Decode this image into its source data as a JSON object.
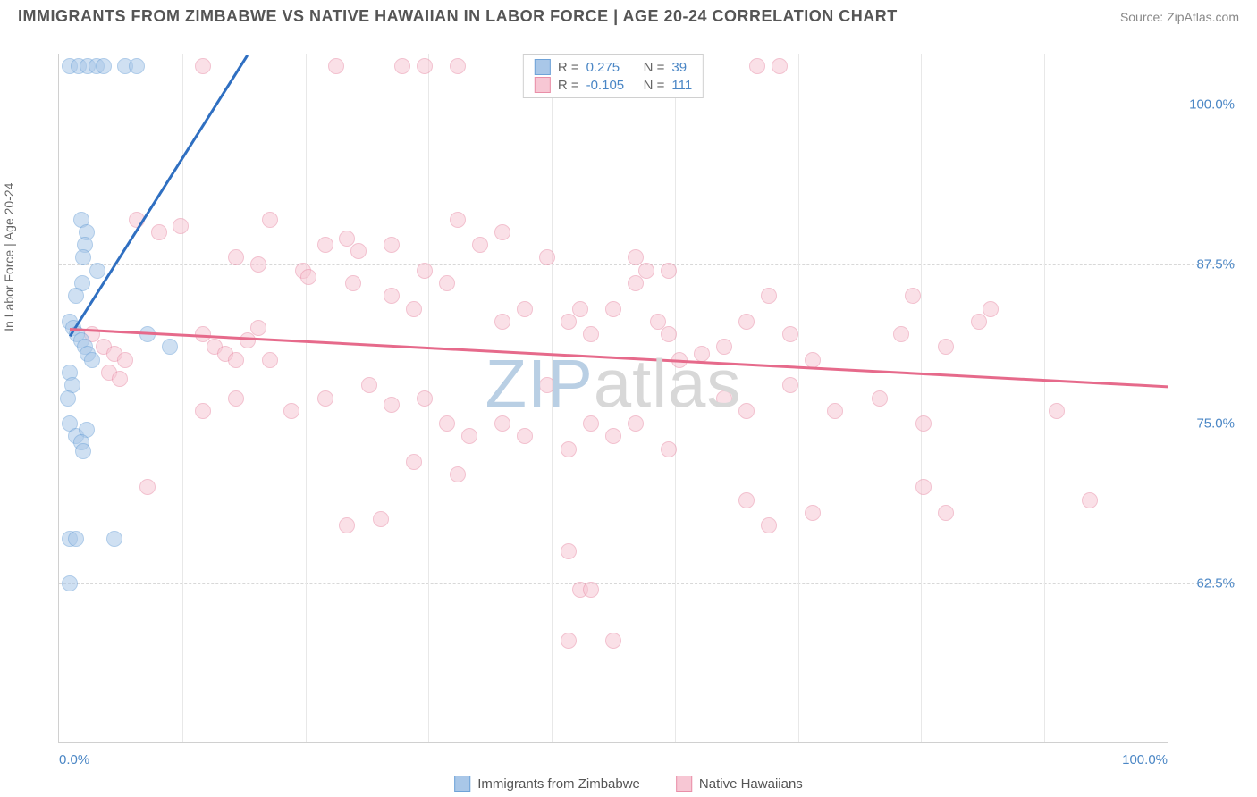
{
  "title": "IMMIGRANTS FROM ZIMBABWE VS NATIVE HAWAIIAN IN LABOR FORCE | AGE 20-24 CORRELATION CHART",
  "source": "Source: ZipAtlas.com",
  "ylabel": "In Labor Force | Age 20-24",
  "watermark_a": "ZIP",
  "watermark_b": "atlas",
  "watermark_color_a": "#b9cfe4",
  "watermark_color_b": "#d8d8d8",
  "chart": {
    "type": "scatter",
    "xlim": [
      0,
      100
    ],
    "ylim": [
      50,
      104
    ],
    "xticks": [
      {
        "v": 0,
        "label": "0.0%"
      },
      {
        "v": 100,
        "label": "100.0%"
      }
    ],
    "yticks": [
      {
        "v": 62.5,
        "label": "62.5%"
      },
      {
        "v": 75.0,
        "label": "75.0%"
      },
      {
        "v": 87.5,
        "label": "87.5%"
      },
      {
        "v": 100.0,
        "label": "100.0%"
      }
    ],
    "vgrid_step_pct": 11.11,
    "series": [
      {
        "name": "Immigrants from Zimbabwe",
        "fill": "#a9c7e8",
        "stroke": "#6fa3d8",
        "trend_color": "#2f6fc1",
        "R": "0.275",
        "N": "39",
        "trend": {
          "x1": 1,
          "y1": 82,
          "x2": 17,
          "y2": 104
        },
        "points": [
          [
            1,
            103
          ],
          [
            1.8,
            103
          ],
          [
            2.6,
            103
          ],
          [
            3.4,
            103
          ],
          [
            4,
            103
          ],
          [
            6,
            103
          ],
          [
            7,
            103
          ],
          [
            2,
            91
          ],
          [
            2.5,
            90
          ],
          [
            2.3,
            89
          ],
          [
            2.2,
            88
          ],
          [
            2.1,
            86
          ],
          [
            1.5,
            85
          ],
          [
            3.5,
            87
          ],
          [
            1,
            83
          ],
          [
            1.3,
            82.5
          ],
          [
            1.6,
            82
          ],
          [
            2,
            81.5
          ],
          [
            2.3,
            81
          ],
          [
            2.6,
            80.5
          ],
          [
            3,
            80
          ],
          [
            1,
            79
          ],
          [
            1.2,
            78
          ],
          [
            0.8,
            77
          ],
          [
            8,
            82
          ],
          [
            10,
            81
          ],
          [
            1,
            75
          ],
          [
            1.5,
            74
          ],
          [
            2.5,
            74.5
          ],
          [
            2,
            73.5
          ],
          [
            2.2,
            72.8
          ],
          [
            1,
            66
          ],
          [
            1.5,
            66
          ],
          [
            5,
            66
          ],
          [
            1,
            62.5
          ]
        ]
      },
      {
        "name": "Native Hawaiians",
        "fill": "#f7c7d4",
        "stroke": "#e98fa8",
        "trend_color": "#e66a8b",
        "R": "-0.105",
        "N": "111",
        "trend": {
          "x1": 1,
          "y1": 82.5,
          "x2": 100,
          "y2": 78
        },
        "points": [
          [
            13,
            103
          ],
          [
            25,
            103
          ],
          [
            31,
            103
          ],
          [
            33,
            103
          ],
          [
            36,
            103
          ],
          [
            57,
            103
          ],
          [
            63,
            103
          ],
          [
            65,
            103
          ],
          [
            7,
            91
          ],
          [
            11,
            90.5
          ],
          [
            9,
            90
          ],
          [
            16,
            88
          ],
          [
            22,
            87
          ],
          [
            18,
            87.5
          ],
          [
            22.5,
            86.5
          ],
          [
            24,
            89
          ],
          [
            26,
            89.5
          ],
          [
            27,
            88.5
          ],
          [
            26.5,
            86
          ],
          [
            30,
            89
          ],
          [
            33,
            87
          ],
          [
            35,
            86
          ],
          [
            30,
            85
          ],
          [
            32,
            84
          ],
          [
            36,
            91
          ],
          [
            38,
            89
          ],
          [
            40,
            90
          ],
          [
            42,
            84
          ],
          [
            44,
            88
          ],
          [
            46,
            83
          ],
          [
            47,
            84
          ],
          [
            48,
            82
          ],
          [
            50,
            84
          ],
          [
            52,
            86
          ],
          [
            54,
            83
          ],
          [
            52,
            88
          ],
          [
            55,
            82
          ],
          [
            56,
            80
          ],
          [
            58,
            80.5
          ],
          [
            60,
            81
          ],
          [
            62,
            83
          ],
          [
            64,
            85
          ],
          [
            66,
            82
          ],
          [
            68,
            80
          ],
          [
            76,
            82
          ],
          [
            77,
            85
          ],
          [
            80,
            81
          ],
          [
            83,
            83
          ],
          [
            3,
            82
          ],
          [
            4,
            81
          ],
          [
            5,
            80.5
          ],
          [
            6,
            80
          ],
          [
            4.5,
            79
          ],
          [
            5.5,
            78.5
          ],
          [
            13,
            82
          ],
          [
            14,
            81
          ],
          [
            15,
            80.5
          ],
          [
            16,
            80
          ],
          [
            17,
            81.5
          ],
          [
            18,
            82.5
          ],
          [
            19,
            80
          ],
          [
            13,
            76
          ],
          [
            16,
            77
          ],
          [
            21,
            76
          ],
          [
            24,
            77
          ],
          [
            28,
            78
          ],
          [
            30,
            76.5
          ],
          [
            33,
            77
          ],
          [
            35,
            75
          ],
          [
            32,
            72
          ],
          [
            37,
            74
          ],
          [
            40,
            75
          ],
          [
            42,
            74
          ],
          [
            44,
            78
          ],
          [
            46,
            73
          ],
          [
            48,
            75
          ],
          [
            50,
            74
          ],
          [
            52,
            75
          ],
          [
            55,
            73
          ],
          [
            60,
            77
          ],
          [
            62,
            76
          ],
          [
            66,
            78
          ],
          [
            70,
            76
          ],
          [
            74,
            77
          ],
          [
            78,
            75
          ],
          [
            90,
            76
          ],
          [
            93,
            69
          ],
          [
            8,
            70
          ],
          [
            26,
            67
          ],
          [
            29,
            67.5
          ],
          [
            36,
            71
          ],
          [
            46,
            65
          ],
          [
            47,
            62
          ],
          [
            48,
            62
          ],
          [
            50,
            58
          ],
          [
            46,
            58
          ],
          [
            62,
            69
          ],
          [
            64,
            67
          ],
          [
            68,
            68
          ],
          [
            78,
            70
          ],
          [
            80,
            68
          ],
          [
            84,
            84
          ],
          [
            53,
            87
          ],
          [
            55,
            87
          ],
          [
            40,
            83
          ],
          [
            19,
            91
          ]
        ]
      }
    ]
  },
  "legend_bottom": [
    {
      "label": "Immigrants from Zimbabwe",
      "fill": "#a9c7e8",
      "stroke": "#6fa3d8"
    },
    {
      "label": "Native Hawaiians",
      "fill": "#f7c7d4",
      "stroke": "#e98fa8"
    }
  ]
}
